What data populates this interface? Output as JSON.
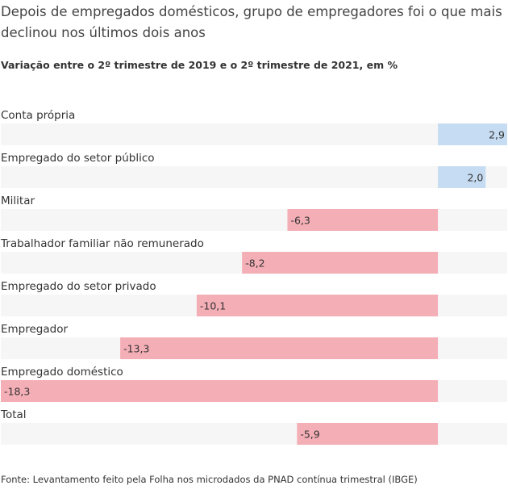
{
  "title": "Depois de empregados domésticos, grupo de empregadores foi o que mais declinou nos últimos dois anos",
  "subtitle": "Variação entre o 2º trimestre de 2019 e o 2º trimestre de 2021, em %",
  "source": "Fonte: Levantamento feito pela Folha nos microdados da PNAD contínua trimestral (IBGE)",
  "colors": {
    "positive": "#c6dcf2",
    "negative": "#f4aeb6",
    "track": "#f6f6f6",
    "text": "#333333"
  },
  "chart_data": {
    "type": "bar",
    "orientation": "horizontal",
    "categories": [
      "Conta própria",
      "Empregado do setor público",
      "Militar",
      "Trabalhador familiar não remunerado",
      "Empregado do setor privado",
      "Empregador",
      "Empregado doméstico",
      "Total"
    ],
    "values": [
      2.9,
      2.0,
      -6.3,
      -8.2,
      -10.1,
      -13.3,
      -18.3,
      -5.9
    ],
    "value_labels": [
      "2,9",
      "2,0",
      "-6,3",
      "-8,2",
      "-10,1",
      "-13,3",
      "-18,3",
      "-5,9"
    ],
    "xlim": [
      -18.3,
      2.9
    ],
    "grid": false
  }
}
